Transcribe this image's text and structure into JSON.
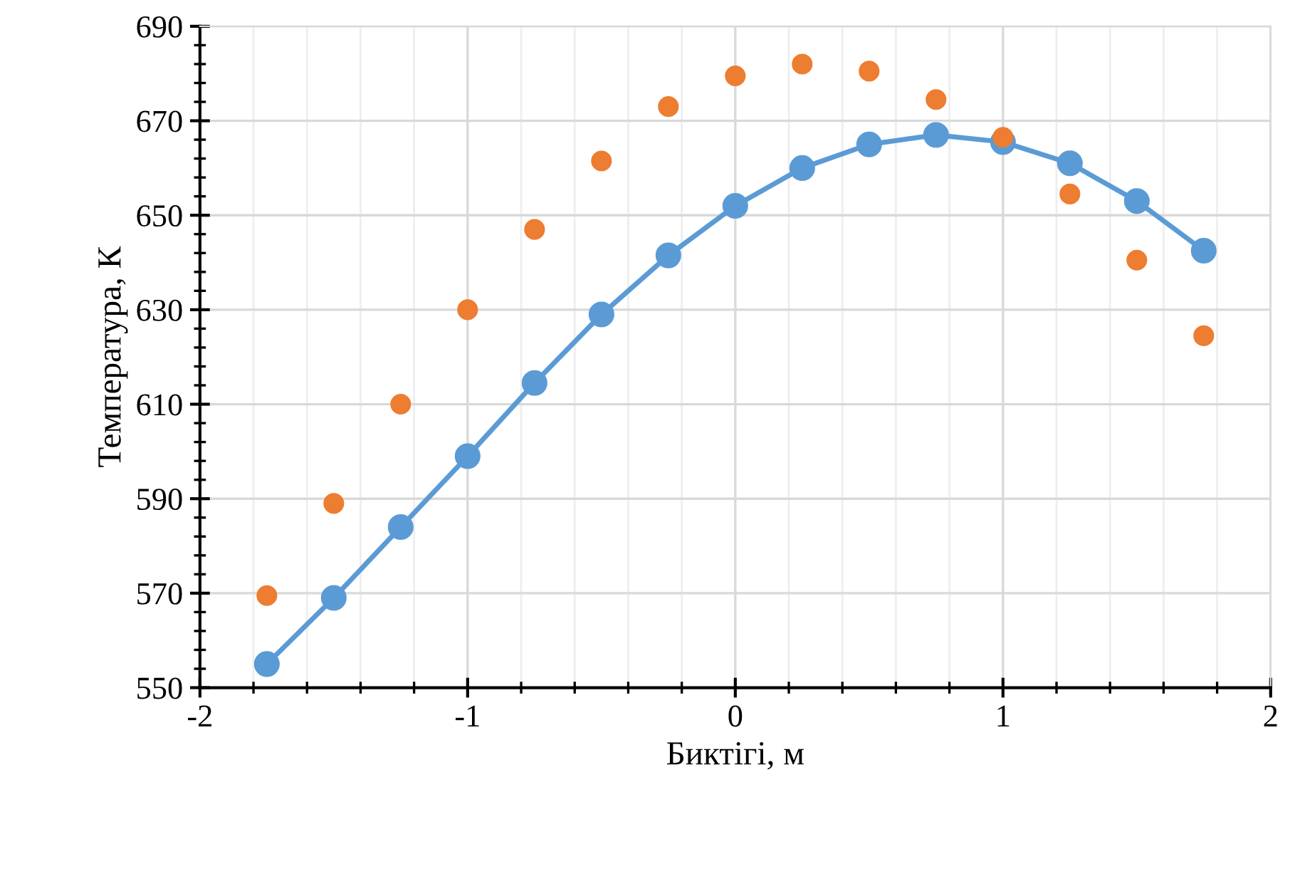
{
  "chart_data": {
    "type": "line",
    "xlabel": "Биктігі, м",
    "ylabel": "Температура, К",
    "x": [
      -1.75,
      -1.5,
      -1.25,
      -1.0,
      -0.75,
      -0.5,
      -0.25,
      0.0,
      0.25,
      0.5,
      0.75,
      1.0,
      1.25,
      1.5,
      1.75
    ],
    "series": [
      {
        "color": "#5b9bd5",
        "marker": "circle",
        "values": [
          555,
          569,
          584,
          599,
          614.5,
          629,
          641.5,
          652,
          660,
          665,
          667,
          665.5,
          661,
          653,
          642.5
        ]
      },
      {
        "type": "scatter",
        "color": "#ed7d31",
        "marker": "circle",
        "values": [
          569.5,
          589,
          610,
          630,
          647,
          661.5,
          673,
          679.5,
          682,
          680.5,
          674.5,
          666.5,
          654.5,
          640.5,
          624.5
        ]
      }
    ],
    "xlim": [
      -2,
      2
    ],
    "xticks": [
      -2,
      -1,
      0,
      1,
      2
    ],
    "ylim": [
      550,
      690
    ],
    "yticks": [
      550,
      570,
      590,
      610,
      630,
      650,
      670,
      690
    ],
    "grid": true,
    "line_style": "solid"
  }
}
